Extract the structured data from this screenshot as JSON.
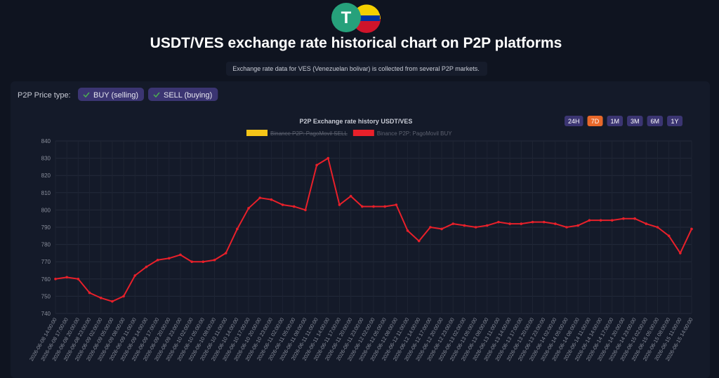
{
  "header": {
    "title": "USDT/VES exchange rate historical chart on P2P platforms",
    "subtitle": "Exchange rate data for VES (Venezuelan bolivar) is collected from several P2P markets."
  },
  "price_type": {
    "label": "P2P Price type:",
    "options": [
      {
        "label": "BUY (selling)",
        "checked": true
      },
      {
        "label": "SELL (buying)",
        "checked": true
      }
    ]
  },
  "range_buttons": [
    {
      "label": "24H",
      "active": false
    },
    {
      "label": "7D",
      "active": true
    },
    {
      "label": "1M",
      "active": false
    },
    {
      "label": "3M",
      "active": false
    },
    {
      "label": "6M",
      "active": false
    },
    {
      "label": "1Y",
      "active": false
    }
  ],
  "chart_data": {
    "type": "line",
    "title": "P2P Exchange rate history USDT/VES",
    "hidden_series": [
      {
        "name": "Binance P2P: PagoMovil SELL",
        "color": "#f5c518"
      }
    ],
    "categories": [
      "2026-06-08 14:00:00",
      "2026-06-08 17:00:00",
      "2026-06-08 20:00:00",
      "2026-06-08 23:00:00",
      "2026-06-09 02:00:00",
      "2026-06-09 05:00:00",
      "2026-06-09 08:00:00",
      "2026-06-09 11:00:00",
      "2026-06-09 14:00:00",
      "2026-06-09 17:00:00",
      "2026-06-09 20:00:00",
      "2026-06-09 23:00:00",
      "2026-06-10 02:00:00",
      "2026-06-10 05:00:00",
      "2026-06-10 08:00:00",
      "2026-06-10 11:00:00",
      "2026-06-10 14:00:00",
      "2026-06-10 17:00:00",
      "2026-06-10 20:00:00",
      "2026-06-10 23:00:00",
      "2026-06-11 02:00:00",
      "2026-06-11 05:00:00",
      "2026-06-11 08:00:00",
      "2026-06-11 11:00:00",
      "2026-06-11 14:00:00",
      "2026-06-11 17:00:00",
      "2026-06-11 20:00:00",
      "2026-06-11 23:00:00",
      "2026-06-12 02:00:00",
      "2026-06-12 05:00:00",
      "2026-06-12 08:00:00",
      "2026-06-12 11:00:00",
      "2026-06-12 14:00:00",
      "2026-06-12 17:00:00",
      "2026-06-12 20:00:00",
      "2026-06-12 23:00:00",
      "2026-06-13 02:00:00",
      "2026-06-13 05:00:00",
      "2026-06-13 08:00:00",
      "2026-06-13 11:00:00",
      "2026-06-13 14:00:00",
      "2026-06-13 17:00:00",
      "2026-06-13 20:00:00",
      "2026-06-13 23:00:00",
      "2026-06-14 02:00:00",
      "2026-06-14 05:00:00",
      "2026-06-14 08:00:00",
      "2026-06-14 11:00:00",
      "2026-06-14 14:00:00",
      "2026-06-14 17:00:00",
      "2026-06-14 20:00:00",
      "2026-06-14 23:00:00",
      "2026-06-15 02:00:00",
      "2026-06-15 05:00:00",
      "2026-06-15 08:00:00",
      "2026-06-15 11:00:00",
      "2026-06-15 14:00:00"
    ],
    "series": [
      {
        "name": "Binance P2P: PagoMovil BUY",
        "color": "#e8202a",
        "values": [
          760,
          761,
          760,
          752,
          749,
          747,
          750,
          762,
          767,
          771,
          772,
          774,
          770,
          770,
          771,
          775,
          789,
          801,
          807,
          806,
          803,
          802,
          800,
          826,
          830,
          803,
          808,
          802,
          802,
          802,
          803,
          788,
          782,
          790,
          789,
          792,
          791,
          790,
          791,
          793,
          792,
          792,
          793,
          793,
          792,
          790,
          791,
          794,
          794,
          794,
          795,
          795,
          792,
          790,
          785,
          775,
          789
        ]
      }
    ],
    "ylim": [
      740,
      840
    ],
    "yticks": [
      740,
      750,
      760,
      770,
      780,
      790,
      800,
      810,
      820,
      830,
      840
    ],
    "grid": true
  }
}
